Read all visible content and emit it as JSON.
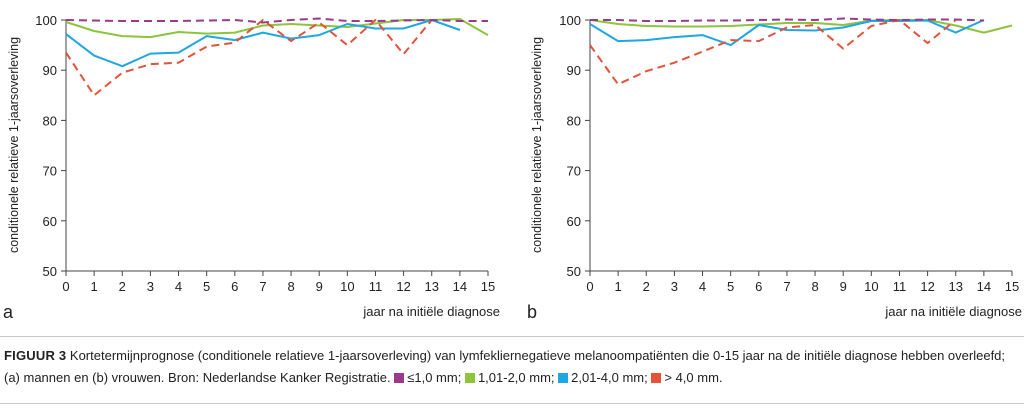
{
  "colors": {
    "le1": "#9b3a8c",
    "c1to2": "#8cc43c",
    "c2to4": "#1ea7e1",
    "gt4": "#e2533a"
  },
  "chart_data": [
    {
      "type": "line",
      "panel_label": "a",
      "xlabel": "jaar na initiële diagnose",
      "ylabel": "conditionele relatieve 1-jaarsoverleving",
      "xlim": [
        0,
        15
      ],
      "ylim": [
        50,
        100
      ],
      "x_ticks": [
        0,
        1,
        2,
        3,
        4,
        5,
        6,
        7,
        8,
        9,
        10,
        11,
        12,
        13,
        14,
        15
      ],
      "y_ticks": [
        50,
        60,
        70,
        80,
        90,
        100
      ],
      "series": [
        {
          "name": "≤1,0 mm",
          "color_key": "le1",
          "dashed": true,
          "x": [
            0,
            1,
            2,
            3,
            4,
            5,
            6,
            7,
            8,
            9,
            10,
            11,
            12,
            13,
            14,
            15
          ],
          "y": [
            100,
            99.9,
            99.8,
            99.8,
            99.8,
            99.9,
            100,
            99.5,
            100,
            100.3,
            99.8,
            99.8,
            99.9,
            100,
            99.8,
            99.8
          ]
        },
        {
          "name": "1,01-2,0 mm",
          "color_key": "c1to2",
          "dashed": false,
          "x": [
            0,
            1,
            2,
            3,
            4,
            5,
            6,
            7,
            8,
            9,
            10,
            11,
            12,
            13,
            14,
            15
          ],
          "y": [
            99.6,
            97.8,
            96.8,
            96.6,
            97.6,
            97.3,
            97.5,
            98.9,
            99.2,
            98.9,
            98.6,
            99.3,
            100,
            100,
            100.2,
            97
          ]
        },
        {
          "name": "2,01-4,0 mm",
          "color_key": "c2to4",
          "dashed": false,
          "x": [
            0,
            1,
            2,
            3,
            4,
            5,
            6,
            7,
            8,
            9,
            10,
            11,
            12,
            13,
            14
          ],
          "y": [
            97.2,
            92.9,
            90.8,
            93.3,
            93.5,
            96.8,
            96,
            97.5,
            96.3,
            97,
            99.2,
            98.3,
            98.3,
            100,
            98
          ]
        },
        {
          "name": "> 4,0 mm",
          "color_key": "gt4",
          "dashed": true,
          "x": [
            0,
            1,
            2,
            3,
            4,
            5,
            6,
            7,
            8,
            9,
            10,
            11,
            12,
            13
          ],
          "y": [
            93.5,
            85,
            89.5,
            91.2,
            91.5,
            94.7,
            95.5,
            100,
            95.8,
            99.5,
            95,
            100,
            93.2,
            100
          ]
        }
      ]
    },
    {
      "type": "line",
      "panel_label": "b",
      "xlabel": "jaar na initiële diagnose",
      "ylabel": "conditionele relatieve 1-jaarsoverleving",
      "xlim": [
        0,
        15
      ],
      "ylim": [
        50,
        100
      ],
      "x_ticks": [
        0,
        1,
        2,
        3,
        4,
        5,
        6,
        7,
        8,
        9,
        10,
        11,
        12,
        13,
        14,
        15
      ],
      "y_ticks": [
        50,
        60,
        70,
        80,
        90,
        100
      ],
      "series": [
        {
          "name": "≤1,0 mm",
          "color_key": "le1",
          "dashed": true,
          "x": [
            0,
            1,
            2,
            3,
            4,
            5,
            6,
            7,
            8,
            9,
            10,
            11,
            12,
            13,
            14
          ],
          "y": [
            100,
            100,
            99.8,
            99.8,
            99.9,
            99.9,
            100,
            100.1,
            100,
            100.3,
            100.1,
            100,
            100.1,
            100.1,
            99.9
          ]
        },
        {
          "name": "1,01-2,0 mm",
          "color_key": "c1to2",
          "dashed": false,
          "x": [
            0,
            1,
            2,
            3,
            4,
            5,
            6,
            7,
            8,
            9,
            10,
            11,
            12,
            13,
            14,
            15
          ],
          "y": [
            100,
            99.2,
            98.8,
            98.7,
            98.7,
            98.8,
            99.1,
            99.4,
            99.4,
            99,
            99.9,
            100,
            100,
            98.9,
            97.5,
            98.9
          ]
        },
        {
          "name": "2,01-4,0 mm",
          "color_key": "c2to4",
          "dashed": false,
          "x": [
            0,
            1,
            2,
            3,
            4,
            5,
            6,
            7,
            8,
            9,
            10,
            11,
            12,
            13,
            14
          ],
          "y": [
            99.2,
            95.8,
            96,
            96.6,
            97,
            95,
            99,
            98,
            97.9,
            98.5,
            99.8,
            99.8,
            99.9,
            97.5,
            100
          ]
        },
        {
          "name": "> 4,0 mm",
          "color_key": "gt4",
          "dashed": true,
          "x": [
            0,
            1,
            2,
            3,
            4,
            5,
            6,
            7,
            8,
            9,
            10,
            11,
            12,
            13
          ],
          "y": [
            95,
            87.2,
            89.8,
            91.5,
            93.7,
            96,
            95.8,
            98.5,
            99,
            94.3,
            98.8,
            100,
            95.4,
            100
          ]
        }
      ]
    }
  ],
  "caption": {
    "label": "FIGUUR 3",
    "text": "Kortetermijnprognose (conditionele relatieve 1-jaarsoverleving) van lymfekliernegatieve melanoompatiënten die 0-15 jaar na de initiële diagnose hebben overleefd; (a) mannen en (b) vrouwen. Bron: Nederlandse Kanker Registratie.",
    "legend": [
      {
        "color_key": "le1",
        "text": "≤1,0 mm;"
      },
      {
        "color_key": "c1to2",
        "text": "1,01-2,0 mm;"
      },
      {
        "color_key": "c2to4",
        "text": "2,01-4,0 mm;"
      },
      {
        "color_key": "gt4",
        "text": "> 4,0 mm."
      }
    ]
  }
}
